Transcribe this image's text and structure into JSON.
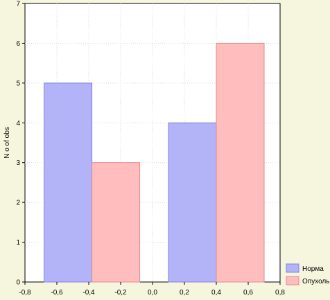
{
  "chart_data": {
    "type": "bar",
    "title": "",
    "xlabel": "",
    "ylabel": "N o of obs",
    "xlim": [
      -0.8,
      0.8
    ],
    "ylim": [
      0,
      7
    ],
    "grid": true,
    "x_ticks": [
      "-0,8",
      "-0,6",
      "-0,4",
      "-0,2",
      "0,0",
      "0,2",
      "0,4",
      "0,6",
      "0,8"
    ],
    "y_ticks": [
      "0",
      "1",
      "2",
      "3",
      "4",
      "5",
      "6",
      "7"
    ],
    "legend_position": "bottom-right",
    "series": [
      {
        "name": "Норма",
        "color": "#b3b3f7",
        "edge": "#8080e0",
        "bars": [
          {
            "x0": -0.68,
            "x1": -0.38,
            "value": 5
          },
          {
            "x0": 0.1,
            "x1": 0.4,
            "value": 4
          }
        ]
      },
      {
        "name": "Опухоль",
        "color": "#ffbdbd",
        "edge": "#e08a8a",
        "bars": [
          {
            "x0": -0.38,
            "x1": -0.08,
            "value": 3
          },
          {
            "x0": 0.4,
            "x1": 0.7,
            "value": 6
          }
        ]
      }
    ]
  }
}
